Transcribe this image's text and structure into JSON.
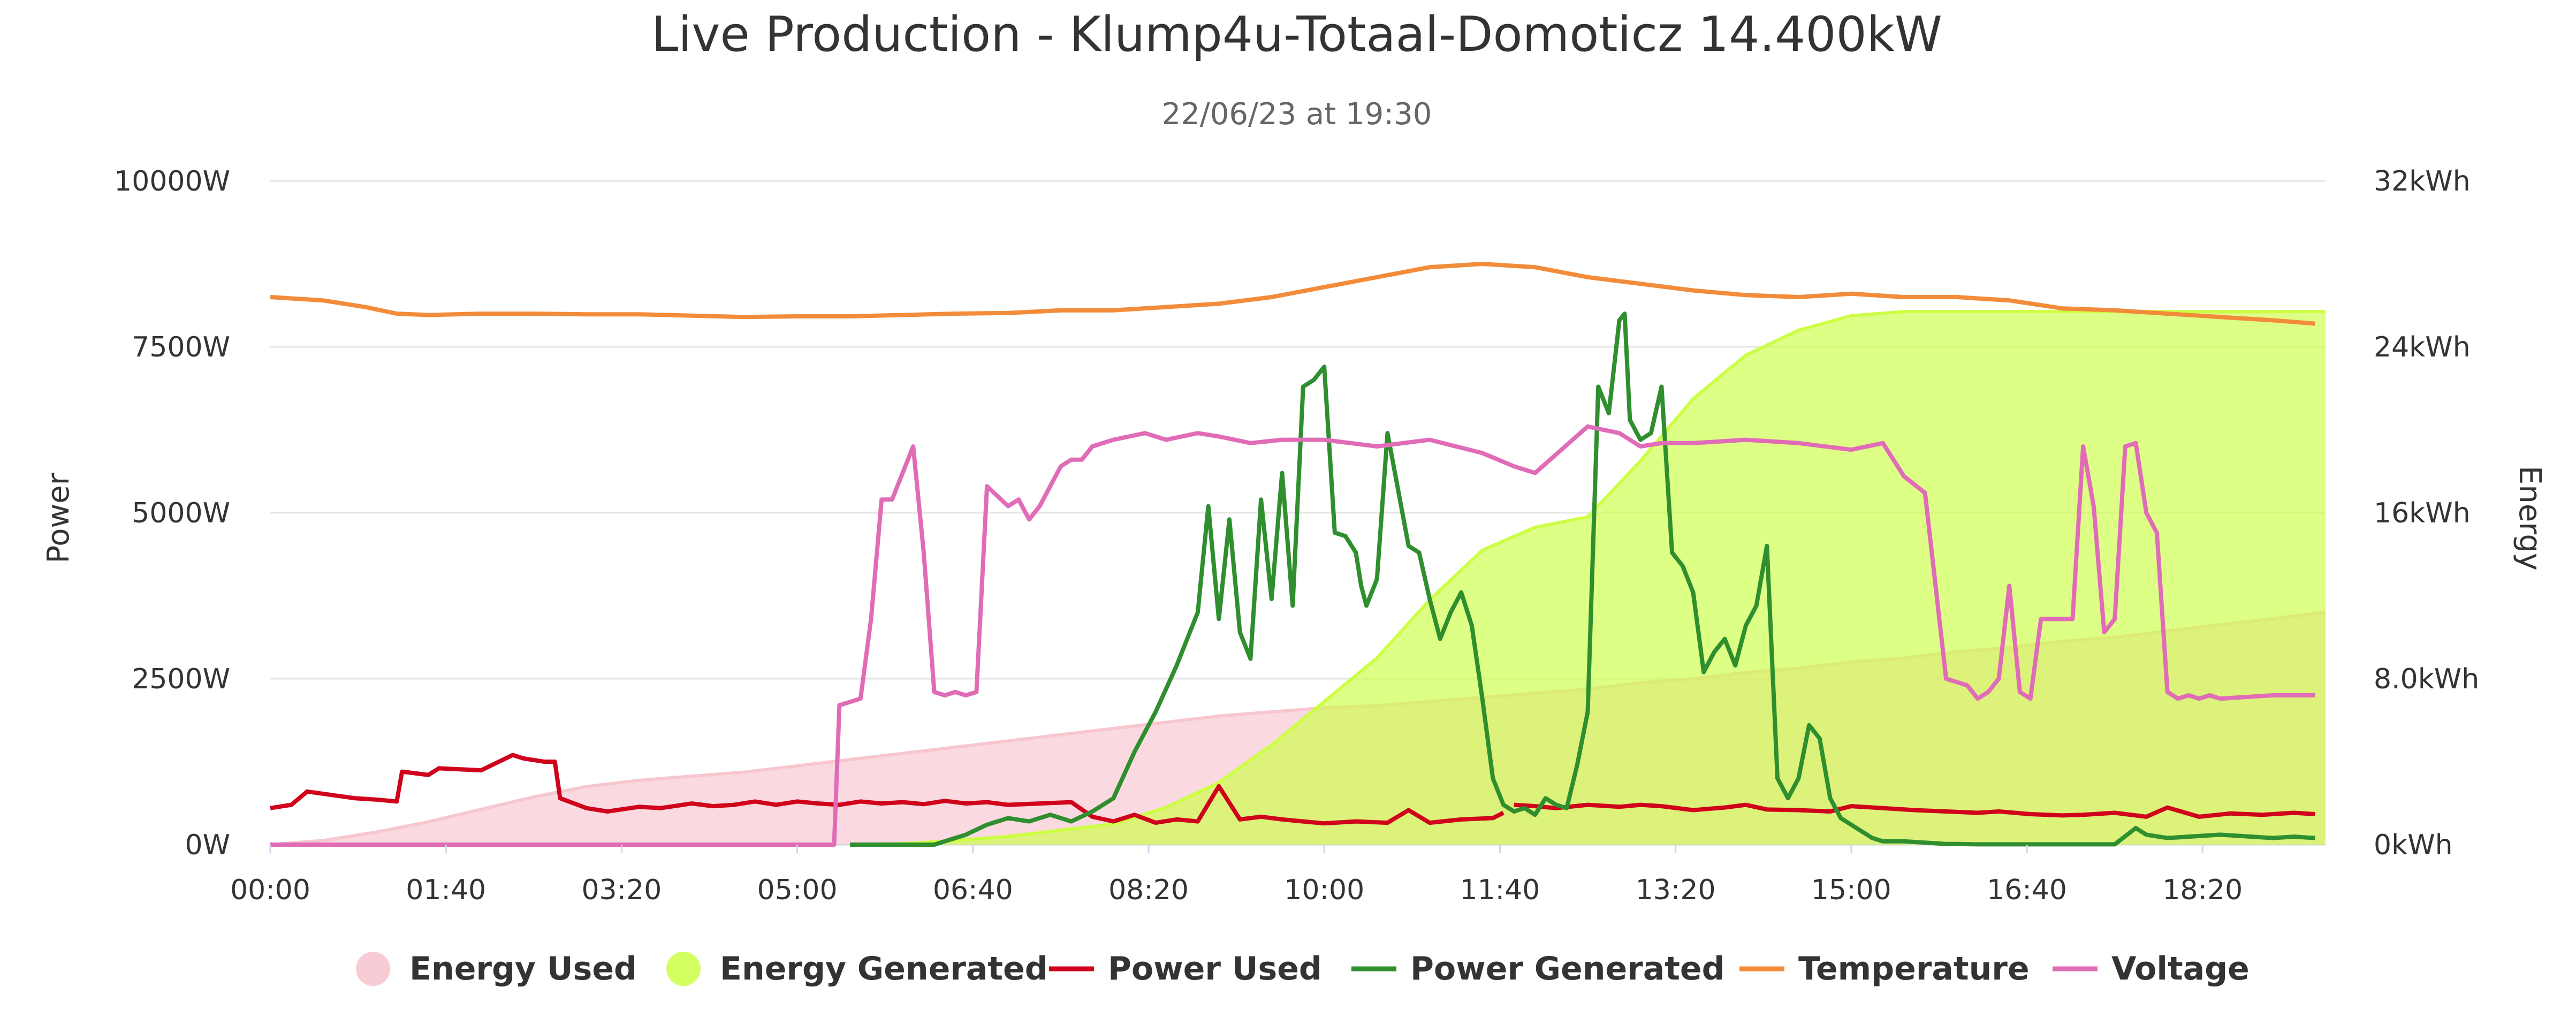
{
  "chart_data": {
    "type": "line",
    "title": "Live Production - Klump4u-Totaal-Domoticz 14.400kW",
    "subtitle": "22/06/23 at 19:30",
    "x_ticks": [
      "00:00",
      "01:40",
      "03:20",
      "05:00",
      "06:40",
      "08:20",
      "10:00",
      "11:40",
      "13:20",
      "15:00",
      "16:40",
      "18:20"
    ],
    "xlim_hours": [
      0,
      19.5
    ],
    "y_left": {
      "label": "Power",
      "ylim": [
        0,
        10000
      ],
      "ticks": [
        0,
        2500,
        5000,
        7500,
        10000
      ],
      "tick_labels": [
        "0W",
        "2500W",
        "5000W",
        "7500W",
        "10000W"
      ]
    },
    "y_right": {
      "label": "Energy",
      "ylim": [
        0,
        32
      ],
      "ticks": [
        0,
        8,
        16,
        24,
        32
      ],
      "tick_labels": [
        "0kWh",
        "8.0kWh",
        "16kWh",
        "24kWh",
        "32kWh"
      ]
    },
    "grid": true,
    "legend_position": "bottom-center",
    "series": [
      {
        "name": "Energy Used",
        "kind": "area",
        "axis": "right",
        "color": "#f7c6cf",
        "x": [
          0,
          0.5,
          1,
          1.5,
          2,
          2.5,
          3,
          3.5,
          4,
          4.5,
          5,
          5.5,
          6,
          6.5,
          7,
          7.5,
          8,
          8.5,
          9,
          9.5,
          10,
          10.5,
          11,
          11.5,
          12,
          12.5,
          13,
          13.5,
          14,
          14.5,
          15,
          15.5,
          16,
          16.5,
          17,
          17.5,
          18,
          18.5,
          19,
          19.5
        ],
        "values": [
          0,
          0.2,
          0.6,
          1.1,
          1.7,
          2.3,
          2.8,
          3.1,
          3.3,
          3.5,
          3.8,
          4.1,
          4.4,
          4.7,
          5.0,
          5.3,
          5.6,
          5.9,
          6.2,
          6.4,
          6.6,
          6.7,
          6.9,
          7.1,
          7.3,
          7.5,
          7.8,
          8.0,
          8.3,
          8.5,
          8.8,
          9.0,
          9.3,
          9.5,
          9.8,
          10.0,
          10.3,
          10.6,
          10.9,
          11.2
        ]
      },
      {
        "name": "Energy Generated",
        "kind": "area",
        "axis": "right",
        "color": "#ccff44",
        "x": [
          5.5,
          6,
          6.5,
          7,
          7.5,
          8,
          8.5,
          9,
          9.5,
          10,
          10.5,
          11,
          11.5,
          12,
          12.5,
          13,
          13.5,
          14,
          14.5,
          15,
          15.5,
          16,
          16.5,
          17,
          17.5,
          18,
          18.5,
          19,
          19.5
        ],
        "values": [
          0,
          0.05,
          0.2,
          0.4,
          0.7,
          1.0,
          1.8,
          3.0,
          4.8,
          6.9,
          9.0,
          11.8,
          14.2,
          15.3,
          15.8,
          18.5,
          21.5,
          23.6,
          24.8,
          25.5,
          25.7,
          25.7,
          25.7,
          25.7,
          25.7,
          25.7,
          25.7,
          25.7,
          25.7
        ]
      },
      {
        "name": "Power Used",
        "kind": "line",
        "axis": "left",
        "color": "#d0021b",
        "x": [
          0,
          0.2,
          0.35,
          0.8,
          1.0,
          1.2,
          1.25,
          1.5,
          1.6,
          2.0,
          2.3,
          2.4,
          2.6,
          2.7,
          2.75,
          3.0,
          3.2,
          3.5,
          3.7,
          4.0,
          4.2,
          4.4,
          4.6,
          4.8,
          5.0,
          5.2,
          5.4,
          5.6,
          5.8,
          6.0,
          6.2,
          6.4,
          6.6,
          6.8,
          7.0,
          7.3,
          7.6,
          7.8,
          8.0,
          8.2,
          8.4,
          8.6,
          8.8,
          9.0,
          9.2,
          9.4,
          9.6,
          9.8,
          10.0,
          10.3,
          10.6,
          10.8,
          11.0,
          11.3,
          11.6,
          11.7
        ],
        "values": [
          550,
          600,
          800,
          700,
          680,
          650,
          1100,
          1050,
          1150,
          1120,
          1350,
          1300,
          1250,
          1250,
          700,
          550,
          500,
          570,
          550,
          620,
          580,
          600,
          650,
          600,
          650,
          620,
          600,
          650,
          620,
          640,
          610,
          660,
          620,
          640,
          600,
          620,
          640,
          420,
          350,
          450,
          330,
          380,
          350,
          880,
          380,
          420,
          380,
          350,
          320,
          350,
          330,
          520,
          330,
          380,
          400,
          480
        ],
        "x2": [
          11.8,
          12.0,
          12.2,
          12.5,
          12.8,
          13.0,
          13.2,
          13.5,
          13.8,
          14.0,
          14.2,
          14.5,
          14.8,
          15.0,
          15.3,
          15.6,
          15.9,
          16.2,
          16.4,
          16.7,
          17.0,
          17.2,
          17.5,
          17.8,
          18.0,
          18.3,
          18.6,
          18.9,
          19.2,
          19.4
        ],
        "values2": [
          600,
          580,
          550,
          600,
          570,
          600,
          580,
          520,
          560,
          600,
          530,
          520,
          500,
          580,
          550,
          520,
          500,
          480,
          500,
          460,
          440,
          450,
          480,
          420,
          560,
          420,
          470,
          450,
          480,
          460
        ]
      },
      {
        "name": "Power Generated",
        "kind": "line",
        "axis": "left",
        "color": "#2f8f2f",
        "x": [
          5.5,
          6.3,
          6.6,
          6.8,
          7.0,
          7.2,
          7.4,
          7.6,
          7.8,
          8.0,
          8.2,
          8.4,
          8.6,
          8.8,
          8.9,
          9.0,
          9.1,
          9.2,
          9.3,
          9.4,
          9.5,
          9.6,
          9.7,
          9.8,
          9.9,
          10.0,
          10.1,
          10.2,
          10.3,
          10.35,
          10.4,
          10.5,
          10.6,
          10.8,
          10.9,
          11.0,
          11.1,
          11.2,
          11.3,
          11.4,
          11.5,
          11.6,
          11.7,
          11.8,
          11.9,
          12.0,
          12.1,
          12.2,
          12.3,
          12.4,
          12.5,
          12.6,
          12.7,
          12.8,
          12.85,
          12.9,
          13.0,
          13.1,
          13.2,
          13.3,
          13.35,
          13.4,
          13.5,
          13.6,
          13.7,
          13.8,
          13.9,
          14.0,
          14.1,
          14.2,
          14.3,
          14.4,
          14.5,
          14.6,
          14.7,
          14.8,
          14.9,
          15.0,
          15.1,
          15.2,
          15.3,
          15.5,
          15.7,
          15.8,
          15.9,
          16.0,
          16.2,
          16.5,
          17.0,
          17.5,
          17.7,
          17.8,
          18.0,
          18.5,
          19.0,
          19.2,
          19.4
        ],
        "values": [
          0,
          0,
          150,
          300,
          400,
          350,
          450,
          350,
          500,
          700,
          1400,
          2000,
          2700,
          3500,
          5100,
          3400,
          4900,
          3200,
          2800,
          5200,
          3700,
          5600,
          3600,
          6900,
          7000,
          7200,
          4700,
          4650,
          4400,
          3900,
          3600,
          4000,
          6200,
          4500,
          4400,
          3700,
          3100,
          3500,
          3800,
          3300,
          2200,
          1000,
          600,
          500,
          550,
          450,
          700,
          600,
          550,
          1200,
          2000,
          6900,
          6500,
          7900,
          8000,
          6400,
          6100,
          6200,
          6900,
          4400,
          4300,
          4200,
          3800,
          2600,
          2900,
          3100,
          2700,
          3300,
          3600,
          4500,
          1000,
          700,
          1000,
          1800,
          1600,
          700,
          400,
          300,
          200,
          100,
          50,
          50,
          30,
          20,
          10,
          10,
          5,
          5,
          5,
          5,
          250,
          150,
          100,
          150,
          100,
          120,
          100
        ]
      },
      {
        "name": "Temperature",
        "kind": "line",
        "axis": "left",
        "color": "#f28c3a",
        "x": [
          0,
          0.5,
          0.9,
          1.2,
          1.5,
          2.0,
          2.5,
          3.0,
          3.5,
          4.0,
          4.5,
          5.0,
          5.5,
          6.0,
          6.5,
          7.0,
          7.5,
          8.0,
          8.5,
          9.0,
          9.5,
          10.0,
          10.5,
          11.0,
          11.5,
          12.0,
          12.5,
          13.0,
          13.5,
          14.0,
          14.5,
          15.0,
          15.5,
          16.0,
          16.5,
          17.0,
          17.5,
          18.0,
          18.5,
          19.0,
          19.4
        ],
        "values": [
          8250,
          8200,
          8100,
          8000,
          7980,
          8000,
          8000,
          7990,
          7990,
          7970,
          7950,
          7960,
          7960,
          7980,
          8000,
          8010,
          8050,
          8050,
          8100,
          8150,
          8250,
          8400,
          8550,
          8700,
          8750,
          8700,
          8550,
          8450,
          8350,
          8280,
          8250,
          8300,
          8250,
          8250,
          8200,
          8080,
          8050,
          8000,
          7950,
          7900,
          7850
        ]
      },
      {
        "name": "Voltage",
        "kind": "line",
        "axis": "left",
        "color": "#e06cb8",
        "x": [
          0,
          5.35,
          5.4,
          5.6,
          5.7,
          5.8,
          5.9,
          6.0,
          6.1,
          6.2,
          6.3,
          6.4,
          6.5,
          6.6,
          6.7,
          6.8,
          7.0,
          7.1,
          7.2,
          7.3,
          7.4,
          7.5,
          7.6,
          7.7,
          7.8,
          8.0,
          8.3,
          8.5,
          8.8,
          9.0,
          9.3,
          9.6,
          10.0,
          10.5,
          11.0,
          11.5,
          11.8,
          12.0,
          12.5,
          12.8,
          13.0,
          13.2,
          13.5,
          14.0,
          14.5,
          15.0,
          15.3,
          15.5,
          15.7,
          15.9,
          16.1,
          16.2,
          16.3,
          16.4,
          16.5,
          16.6,
          16.7,
          16.8,
          16.9,
          17.0,
          17.1,
          17.2,
          17.3,
          17.4,
          17.5,
          17.6,
          17.7,
          17.8,
          17.9,
          18.0,
          18.1,
          18.2,
          18.3,
          18.4,
          18.5,
          19.0,
          19.4
        ],
        "values": [
          0,
          0,
          2100,
          2200,
          3400,
          5200,
          5200,
          5600,
          6000,
          4400,
          2300,
          2250,
          2300,
          2250,
          2300,
          5400,
          5100,
          5200,
          4900,
          5100,
          5400,
          5700,
          5800,
          5800,
          6000,
          6100,
          6200,
          6100,
          6200,
          6150,
          6050,
          6100,
          6100,
          6000,
          6100,
          5900,
          5700,
          5600,
          6300,
          6200,
          6000,
          6050,
          6050,
          6100,
          6050,
          5950,
          6050,
          5550,
          5300,
          2500,
          2400,
          2200,
          2300,
          2500,
          3900,
          2300,
          2200,
          3400,
          3400,
          3400,
          3400,
          6000,
          5100,
          3200,
          3400,
          6000,
          6050,
          5000,
          4700,
          2300,
          2200,
          2250,
          2200,
          2250,
          2200,
          2250,
          2250
        ]
      }
    ]
  }
}
